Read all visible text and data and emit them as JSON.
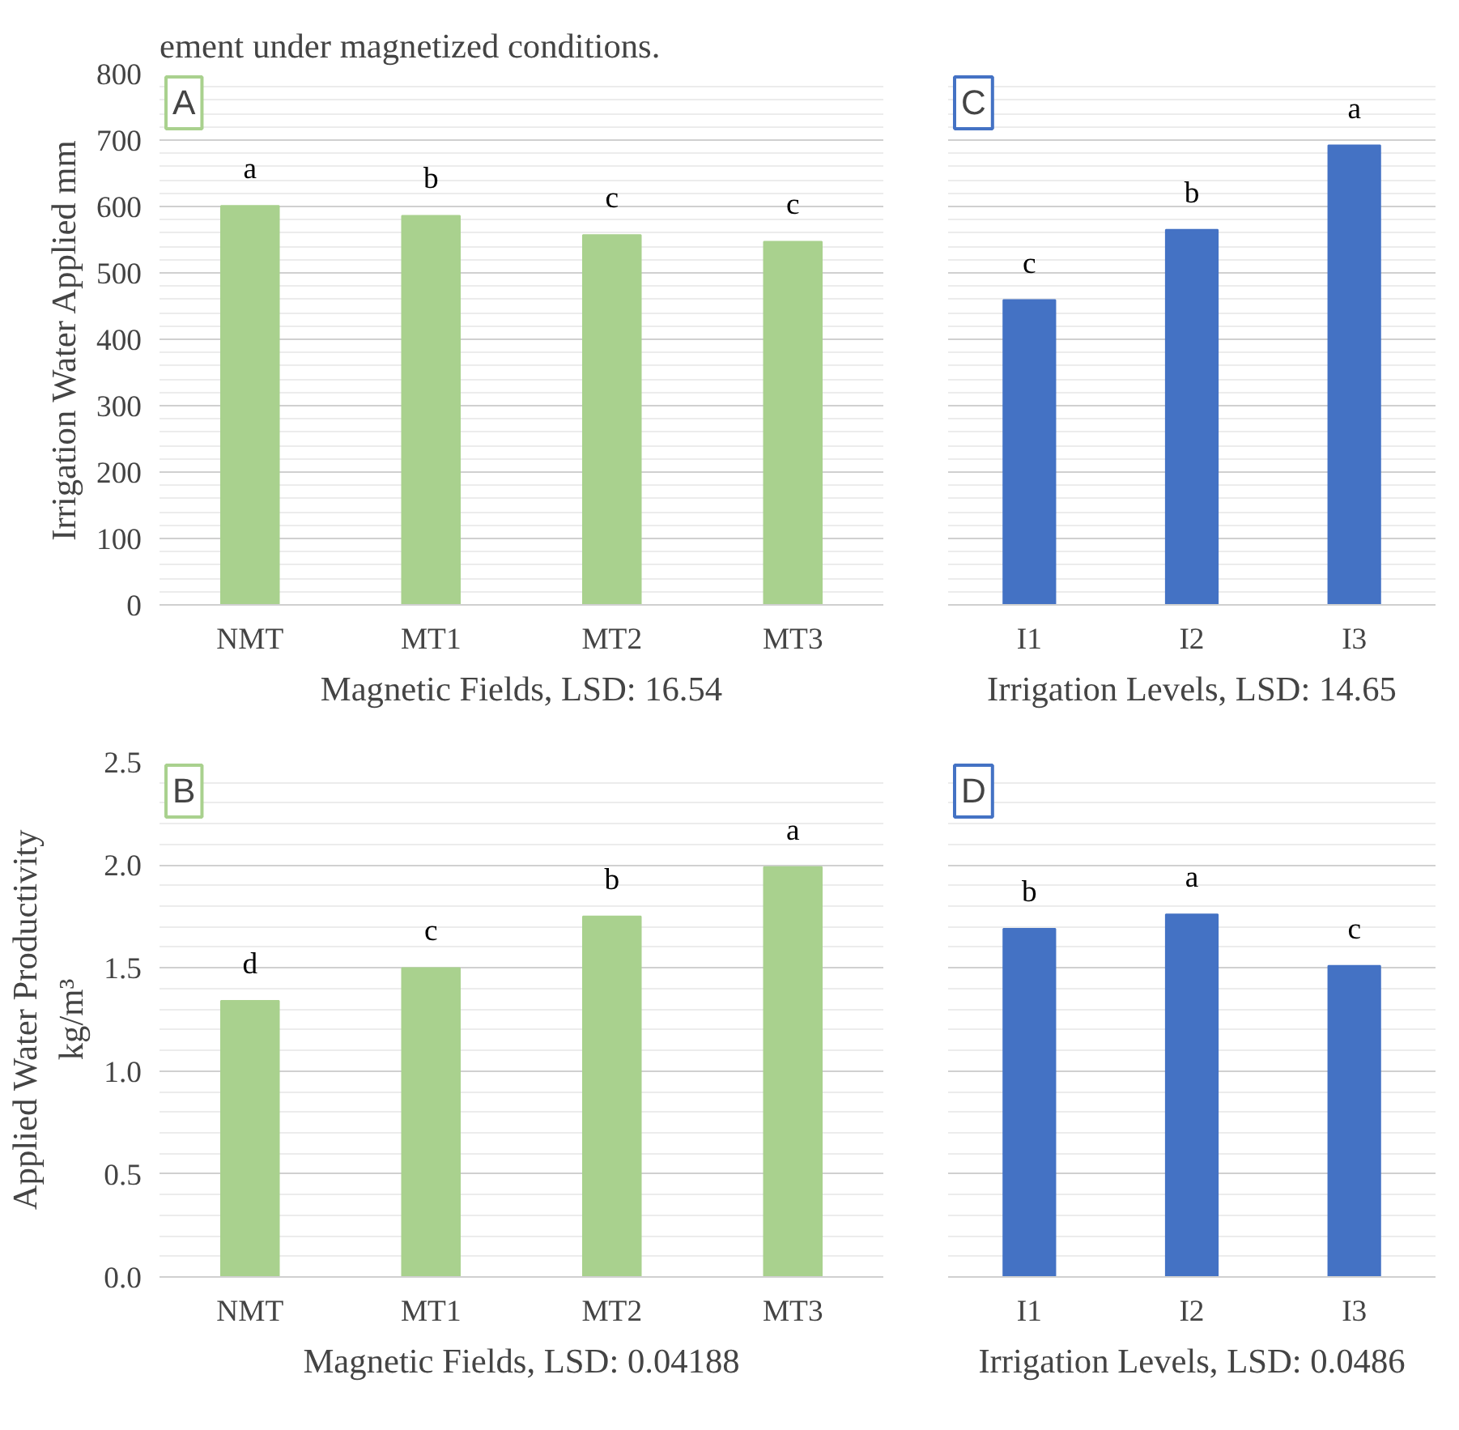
{
  "chart_data": [
    {
      "type": "bar",
      "ylabel": "Irrigation Water Applied mm",
      "xlabel": "Magnetic Fields, LSD: 16.54",
      "categories": [
        "NMT",
        "MT1",
        "MT2",
        "MT3"
      ],
      "values": [
        601,
        586,
        557,
        547
      ],
      "color": "#a9d18e",
      "value_labels": [
        "a",
        "b",
        "c",
        "c"
      ],
      "ylim": [
        0,
        800
      ],
      "yticks": [
        0,
        100,
        200,
        300,
        400,
        500,
        600,
        700,
        800
      ],
      "grid": "y",
      "annotations": [
        "A",
        "ement under magnetized conditions."
      ]
    },
    {
      "type": "bar",
      "xlabel": "Irrigation Levels, LSD: 14.65",
      "categories": [
        "I1",
        "I2",
        "I3"
      ],
      "values": [
        459,
        565,
        692
      ],
      "color": "#4472c4",
      "value_labels": [
        "c",
        "b",
        "a"
      ],
      "ylim": [
        0,
        800
      ],
      "yticks": [
        0,
        100,
        200,
        300,
        400,
        500,
        600,
        700,
        800
      ],
      "grid": "y",
      "tick_labels": "x",
      "annotations": [
        "C"
      ]
    },
    {
      "type": "bar",
      "ylabel": "Applied Water Productivity\nkg/m³",
      "xlabel": "Magnetic Fields, LSD: 0.04188",
      "categories": [
        "NMT",
        "MT1",
        "MT2",
        "MT3"
      ],
      "values": [
        1.34,
        1.5,
        1.75,
        1.99
      ],
      "color": "#a9d18e",
      "value_labels": [
        "d",
        "c",
        "b",
        "a"
      ],
      "ylim": [
        0,
        2.5
      ],
      "yticks": [
        {
          "value": 0,
          "label": "0.0"
        },
        0.5,
        {
          "value": 1,
          "label": "1.0"
        },
        1.5,
        {
          "value": 2,
          "label": "2.0"
        },
        2.5
      ],
      "grid": "y",
      "annotations": [
        "B"
      ]
    },
    {
      "type": "bar",
      "xlabel": "Irrigation Levels, LSD: 0.0486",
      "categories": [
        "I1",
        "I2",
        "I3"
      ],
      "values": [
        1.69,
        1.76,
        1.51
      ],
      "color": "#4472c4",
      "value_labels": [
        "b",
        "a",
        "c"
      ],
      "ylim": [
        0,
        2.5
      ],
      "yticks": [
        0,
        0.5,
        1,
        1.5,
        2,
        2.5
      ],
      "grid": "y",
      "tick_labels": "x",
      "annotations": [
        "D"
      ]
    }
  ]
}
